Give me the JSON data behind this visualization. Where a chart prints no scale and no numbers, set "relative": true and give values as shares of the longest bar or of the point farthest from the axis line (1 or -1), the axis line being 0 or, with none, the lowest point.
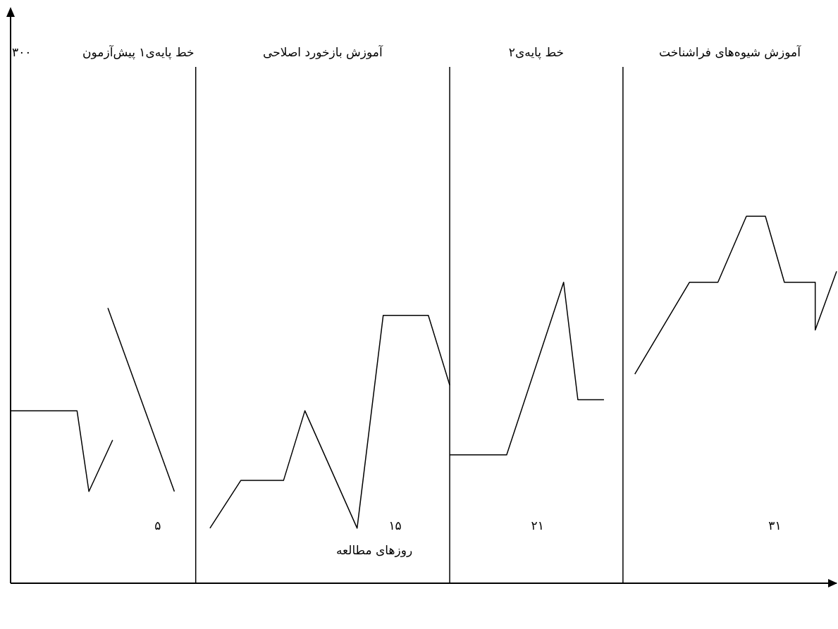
{
  "chart_data": {
    "type": "line",
    "relative": true,
    "xlabel": "روزهای مطالعه",
    "xlim": [
      -1.2,
      33.6
    ],
    "xticks": [
      {
        "value": 5,
        "label": "۵"
      },
      {
        "value": 15,
        "label": "۱۵"
      },
      {
        "value": 21,
        "label": "۲۱"
      },
      {
        "value": 31,
        "label": "۳۱"
      }
    ],
    "marker": "none",
    "line_style": "solid",
    "ref_lines": [
      {
        "axis": "x",
        "value": 6.6
      },
      {
        "axis": "x",
        "value": 17.3
      },
      {
        "axis": "x",
        "value": 24.6
      }
    ],
    "annotations": [
      "۳۰۰",
      "خط پایه‌ی۱ پیش‌آزمون",
      "آموزش بازخورد اصلاحی",
      "خط پایه‌ی۲",
      "آموزش شیوه‌های فراشناخت"
    ],
    "series": [
      {
        "color": "#000000",
        "x": [
          -1.2,
          1.6,
          2.1,
          3.1
        ],
        "values": [
          0.47,
          0.47,
          0.25,
          0.39
        ]
      },
      {
        "color": "#000000",
        "x": [
          2.9,
          5.7
        ],
        "values": [
          0.75,
          0.25
        ]
      },
      {
        "color": "#000000",
        "x": [
          7.2,
          8.5,
          10.3,
          11.2,
          13.4,
          14.5,
          16.4,
          17.3
        ],
        "values": [
          0.15,
          0.28,
          0.28,
          0.47,
          0.15,
          0.73,
          0.73,
          0.54
        ]
      },
      {
        "color": "#000000",
        "x": [
          17.3,
          19.7,
          22.1,
          22.7,
          23.8
        ],
        "values": [
          0.35,
          0.35,
          0.82,
          0.5,
          0.5
        ]
      },
      {
        "color": "#000000",
        "x": [
          25.1,
          27.4,
          28.6,
          29.8,
          30.6,
          31.4,
          32.7,
          32.7,
          33.6
        ],
        "values": [
          0.57,
          0.82,
          0.82,
          1,
          1,
          0.82,
          0.82,
          0.69,
          0.85
        ]
      }
    ]
  }
}
